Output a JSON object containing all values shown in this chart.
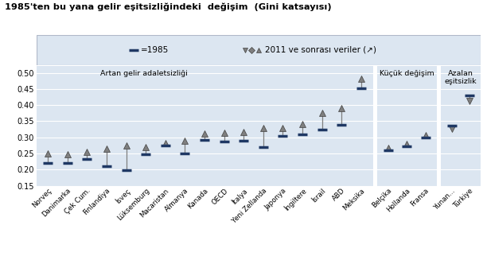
{
  "title": "1985'ten bu yana gelir eşitsizliğindeki  değişim  (Gini katsayısı)",
  "background_color": "#dce6f1",
  "countries_main": [
    "Norveç",
    "Danimarka",
    "Çek Cum.",
    "Finlandiya",
    "İsveç",
    "Lüksemburg",
    "Macaristan",
    "Almanya",
    "Kanada",
    "OECD",
    "İtalya",
    "Yeni Zellanda",
    "Japonya",
    "İngiltere",
    "İsrail",
    "ABD",
    "Meksika"
  ],
  "val_1985_main": [
    0.222,
    0.222,
    0.232,
    0.21,
    0.198,
    0.248,
    0.275,
    0.251,
    0.293,
    0.288,
    0.29,
    0.27,
    0.304,
    0.31,
    0.323,
    0.338,
    0.452
  ],
  "val_2011_main": [
    0.25,
    0.248,
    0.256,
    0.266,
    0.274,
    0.27,
    0.283,
    0.289,
    0.313,
    0.315,
    0.317,
    0.33,
    0.329,
    0.342,
    0.376,
    0.39,
    0.482
  ],
  "countries_small": [
    "Belçika",
    "Hollanda",
    "Fransa"
  ],
  "val_1985_small": [
    0.26,
    0.272,
    0.3
  ],
  "val_2011_small": [
    0.268,
    0.28,
    0.306
  ],
  "countries_dec": [
    "Yunan...",
    "Türkiye"
  ],
  "val_1985_dec": [
    0.336,
    0.43
  ],
  "val_2011_dec": [
    0.327,
    0.412
  ],
  "section1_label": "Artan gelir adaletsizliği",
  "section2_label": "Küçük değişim",
  "section3_label": "Azalan\neşitsizlik",
  "ylim": [
    0.15,
    0.52
  ],
  "yticks": [
    0.15,
    0.2,
    0.25,
    0.3,
    0.35,
    0.4,
    0.45,
    0.5
  ],
  "color_1985": "#1f3864",
  "triangle_color": "#7f7f7f",
  "line_color": "#7f7f7f",
  "tri_edge_color": "#404040"
}
